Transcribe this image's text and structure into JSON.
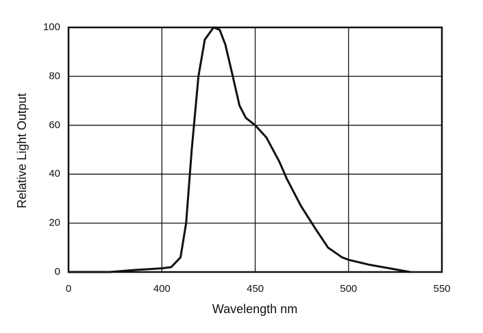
{
  "chart_data": {
    "type": "line",
    "xlabel": "Wavelength nm",
    "ylabel": "Relative Light Output",
    "x": [
      350,
      372,
      385,
      400,
      405,
      410,
      413,
      416,
      419.6,
      423,
      427.7,
      431,
      434,
      438,
      441.6,
      445,
      450,
      456,
      463,
      467,
      474.5,
      482,
      489,
      496.5,
      500,
      511,
      522,
      533
    ],
    "series": [
      {
        "color": "#111111",
        "values": [
          0,
          0,
          0.8,
          1.5,
          2,
          6,
          20,
          50,
          80,
          95,
          100,
          99,
          93,
          80,
          68,
          63,
          60,
          55,
          45,
          38,
          27,
          18,
          10,
          6,
          5,
          3,
          1.5,
          0
        ]
      }
    ],
    "xlim": [
      350,
      550
    ],
    "xticks": [
      {
        "value": 350,
        "label": "0"
      },
      400,
      450,
      500,
      550
    ],
    "ylim": [
      0,
      100
    ],
    "yticks": [
      0,
      20,
      40,
      60,
      80,
      100
    ],
    "grid": true
  }
}
